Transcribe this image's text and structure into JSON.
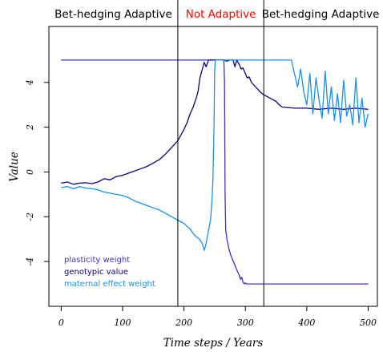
{
  "chart_data": {
    "type": "line",
    "xlabel": "Time steps / Years",
    "ylabel": "Value",
    "xlim": [
      -20,
      515
    ],
    "ylim": [
      -6.0,
      6.5
    ],
    "x_ticks": [
      0,
      100,
      200,
      300,
      400,
      500
    ],
    "y_ticks": [
      -4,
      -2,
      0,
      2,
      4
    ],
    "region_boundaries": [
      190,
      330
    ],
    "region_titles": [
      {
        "label": "Bet-hedging Adaptive",
        "x_from": -20,
        "x_to": 190,
        "color": "#000000"
      },
      {
        "label": "Not Adaptive",
        "x_from": 190,
        "x_to": 330,
        "color": "#ff0000"
      },
      {
        "label": "Bet-hedging Adaptive",
        "x_from": 330,
        "x_to": 515,
        "color": "#000000"
      }
    ],
    "legend_position": "bottom-left",
    "series": [
      {
        "name": "plasticity weight",
        "color": "#3f33c4",
        "points": [
          [
            0,
            5.0
          ],
          [
            265,
            5.0
          ],
          [
            266,
            4.0
          ],
          [
            267,
            -1.0
          ],
          [
            268,
            -2.6
          ],
          [
            270,
            -3.0
          ],
          [
            273,
            -3.4
          ],
          [
            276,
            -3.7
          ],
          [
            279,
            -3.9
          ],
          [
            282,
            -4.1
          ],
          [
            285,
            -4.3
          ],
          [
            288,
            -4.5
          ],
          [
            290,
            -4.6
          ],
          [
            292,
            -4.8
          ],
          [
            294,
            -4.7
          ],
          [
            296,
            -4.9
          ],
          [
            298,
            -5.0
          ],
          [
            300,
            -4.95
          ],
          [
            302,
            -5.0
          ],
          [
            500,
            -5.0
          ]
        ]
      },
      {
        "name": "genotypic value",
        "color": "#170070",
        "points": [
          [
            0,
            -0.5
          ],
          [
            10,
            -0.45
          ],
          [
            20,
            -0.55
          ],
          [
            30,
            -0.5
          ],
          [
            40,
            -0.48
          ],
          [
            50,
            -0.52
          ],
          [
            60,
            -0.45
          ],
          [
            70,
            -0.3
          ],
          [
            80,
            -0.35
          ],
          [
            90,
            -0.2
          ],
          [
            100,
            -0.15
          ],
          [
            110,
            -0.05
          ],
          [
            120,
            0.05
          ],
          [
            130,
            0.15
          ],
          [
            140,
            0.25
          ],
          [
            150,
            0.4
          ],
          [
            160,
            0.55
          ],
          [
            170,
            0.8
          ],
          [
            180,
            1.1
          ],
          [
            190,
            1.4
          ],
          [
            200,
            1.9
          ],
          [
            205,
            2.2
          ],
          [
            210,
            2.6
          ],
          [
            215,
            2.9
          ],
          [
            220,
            3.3
          ],
          [
            223,
            3.6
          ],
          [
            226,
            4.2
          ],
          [
            230,
            4.6
          ],
          [
            233,
            4.9
          ],
          [
            236,
            4.7
          ],
          [
            240,
            5.0
          ],
          [
            250,
            5.0
          ],
          [
            260,
            5.0
          ],
          [
            265,
            5.0
          ],
          [
            270,
            4.95
          ],
          [
            275,
            5.0
          ],
          [
            280,
            5.0
          ],
          [
            283,
            4.7
          ],
          [
            286,
            5.0
          ],
          [
            290,
            4.8
          ],
          [
            293,
            4.6
          ],
          [
            296,
            4.65
          ],
          [
            300,
            4.4
          ],
          [
            303,
            4.2
          ],
          [
            306,
            4.25
          ],
          [
            310,
            4.0
          ],
          [
            315,
            3.85
          ],
          [
            320,
            3.7
          ],
          [
            325,
            3.55
          ],
          [
            330,
            3.45
          ],
          [
            340,
            3.3
          ],
          [
            350,
            3.15
          ],
          [
            355,
            3.0
          ],
          [
            360,
            2.9
          ],
          [
            380,
            2.85
          ],
          [
            400,
            2.85
          ],
          [
            420,
            2.8
          ],
          [
            440,
            2.85
          ],
          [
            460,
            2.8
          ],
          [
            480,
            2.85
          ],
          [
            500,
            2.8
          ]
        ]
      },
      {
        "name": "maternal effect weight",
        "color": "#1b8fe8",
        "points": [
          [
            0,
            -0.7
          ],
          [
            10,
            -0.65
          ],
          [
            20,
            -0.75
          ],
          [
            30,
            -0.65
          ],
          [
            40,
            -0.72
          ],
          [
            50,
            -0.75
          ],
          [
            60,
            -0.8
          ],
          [
            70,
            -0.9
          ],
          [
            80,
            -0.95
          ],
          [
            90,
            -1.0
          ],
          [
            100,
            -1.05
          ],
          [
            110,
            -1.15
          ],
          [
            120,
            -1.3
          ],
          [
            130,
            -1.4
          ],
          [
            140,
            -1.5
          ],
          [
            150,
            -1.6
          ],
          [
            160,
            -1.7
          ],
          [
            170,
            -1.85
          ],
          [
            180,
            -2.0
          ],
          [
            190,
            -2.15
          ],
          [
            200,
            -2.3
          ],
          [
            210,
            -2.55
          ],
          [
            215,
            -2.75
          ],
          [
            220,
            -2.9
          ],
          [
            225,
            -3.0
          ],
          [
            230,
            -3.2
          ],
          [
            233,
            -3.5
          ],
          [
            236,
            -3.2
          ],
          [
            240,
            -2.6
          ],
          [
            243,
            -2.2
          ],
          [
            245,
            -1.5
          ],
          [
            247,
            -0.5
          ],
          [
            249,
            2.0
          ],
          [
            250,
            4.5
          ],
          [
            251,
            5.0
          ],
          [
            330,
            5.0
          ],
          [
            340,
            5.0
          ],
          [
            360,
            5.0
          ],
          [
            375,
            5.0
          ],
          [
            380,
            4.4
          ],
          [
            385,
            3.8
          ],
          [
            390,
            4.6
          ],
          [
            395,
            3.6
          ],
          [
            400,
            3.0
          ],
          [
            405,
            4.4
          ],
          [
            410,
            2.6
          ],
          [
            415,
            4.2
          ],
          [
            420,
            3.2
          ],
          [
            425,
            2.4
          ],
          [
            430,
            4.5
          ],
          [
            435,
            2.6
          ],
          [
            440,
            3.8
          ],
          [
            445,
            2.3
          ],
          [
            450,
            3.5
          ],
          [
            455,
            2.2
          ],
          [
            460,
            4.1
          ],
          [
            465,
            2.5
          ],
          [
            470,
            3.0
          ],
          [
            475,
            2.1
          ],
          [
            480,
            4.2
          ],
          [
            485,
            2.2
          ],
          [
            490,
            3.3
          ],
          [
            495,
            2.0
          ],
          [
            500,
            2.6
          ]
        ]
      }
    ]
  }
}
